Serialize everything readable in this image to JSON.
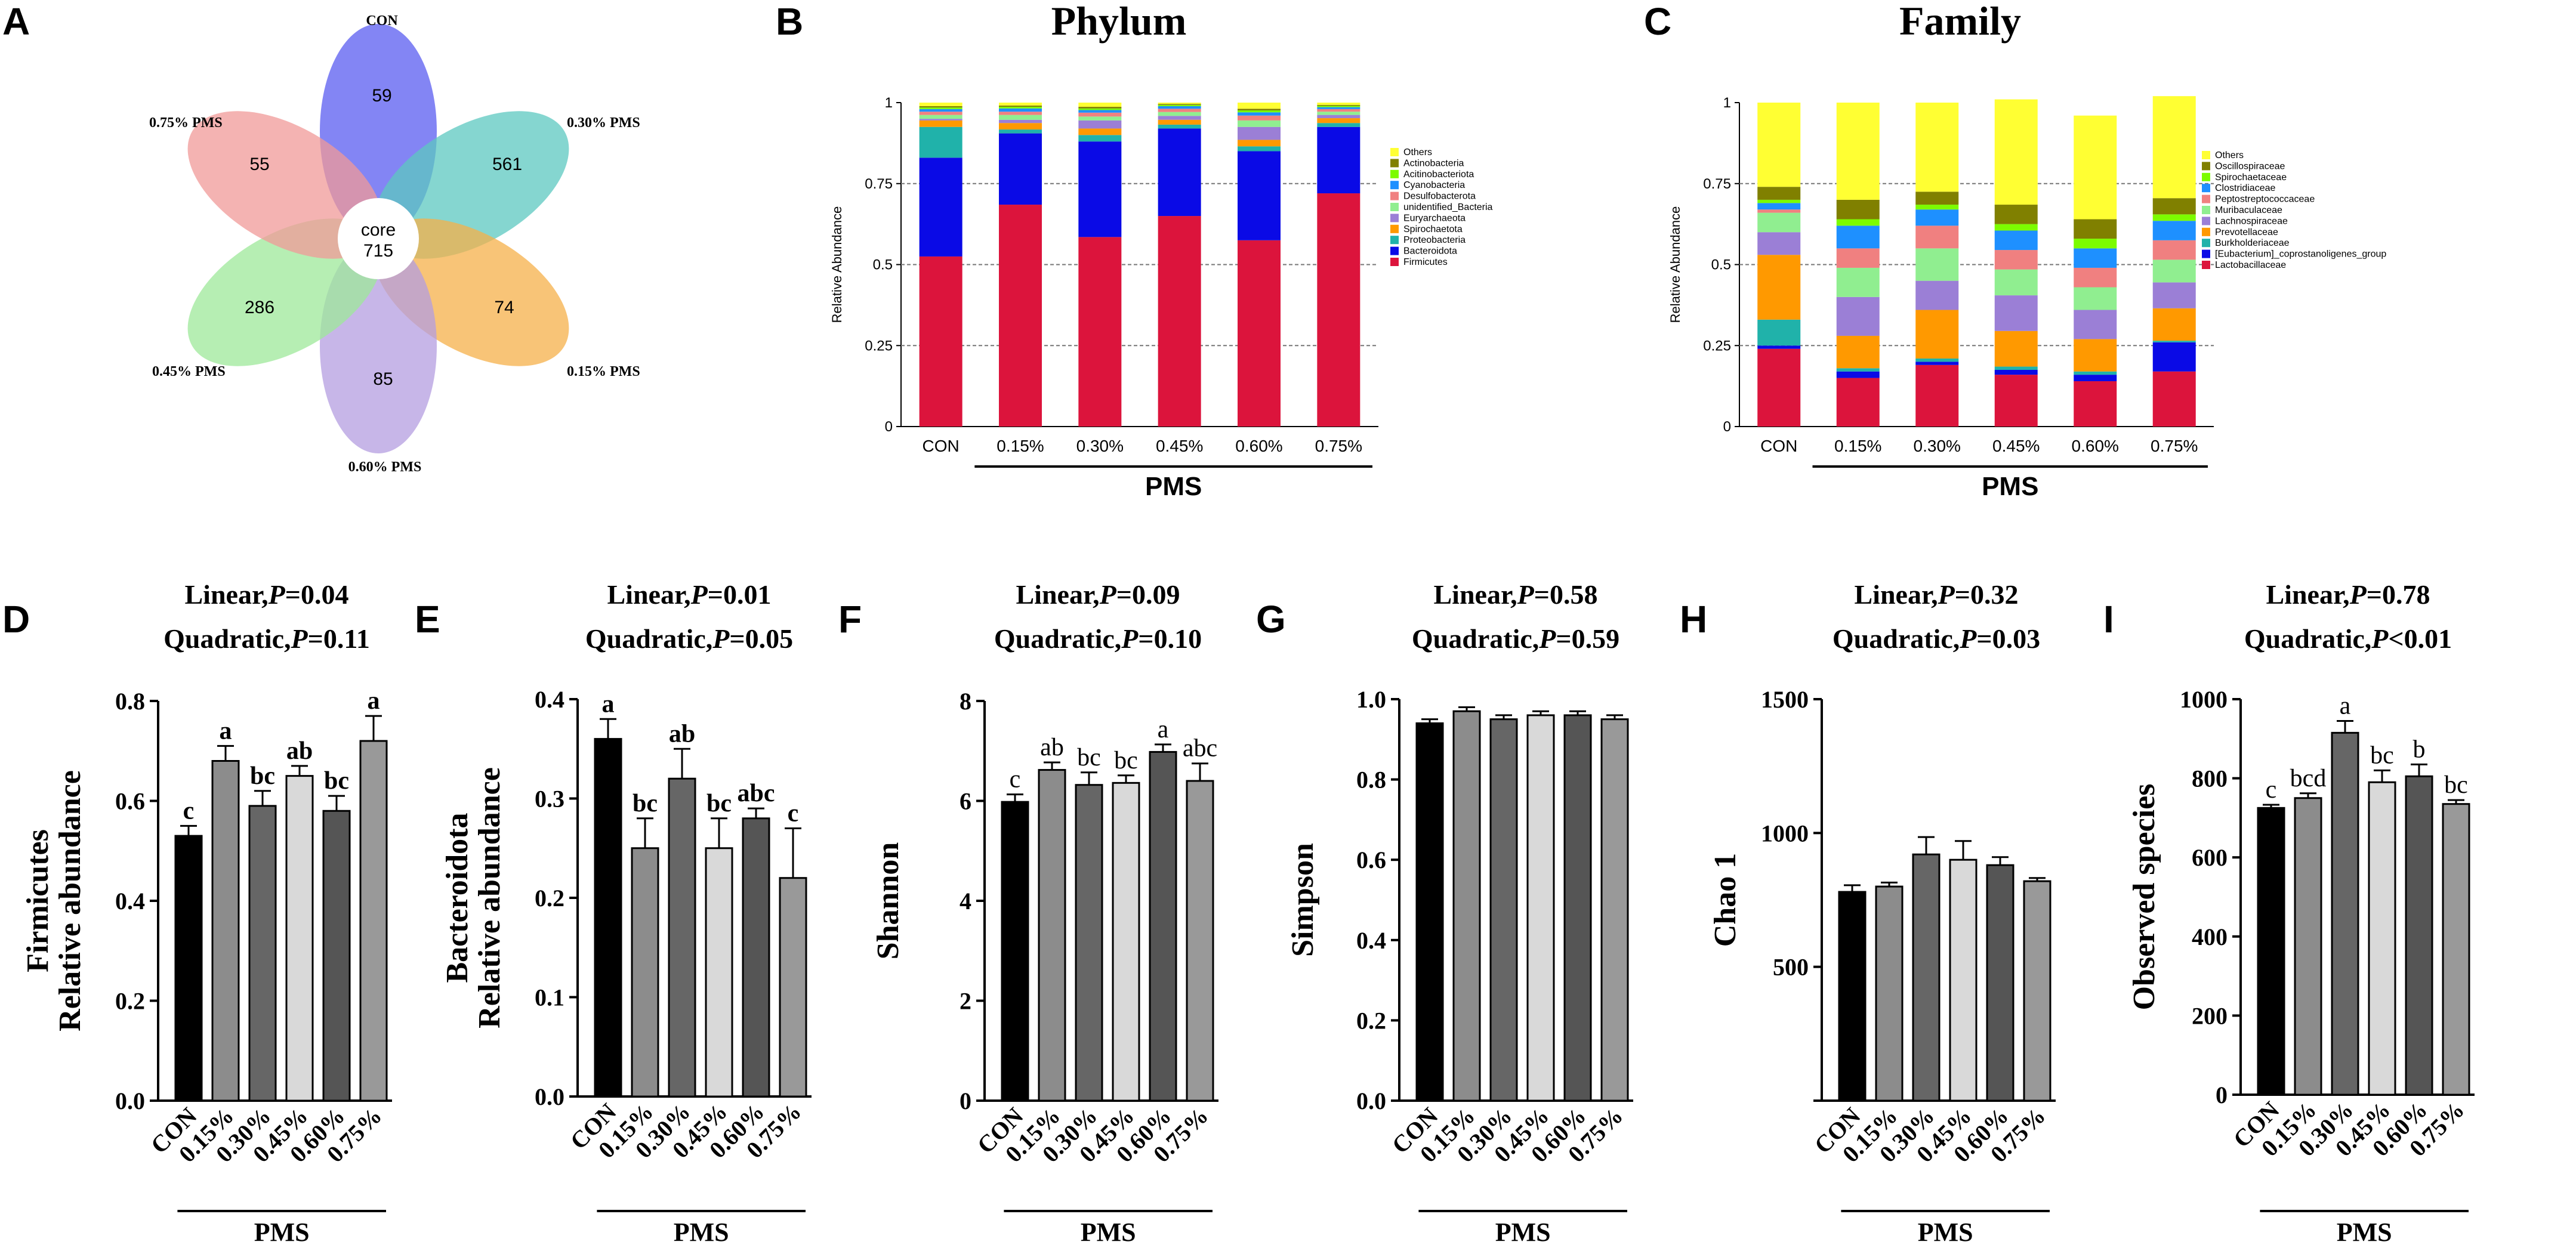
{
  "panel_labels": [
    "A",
    "B",
    "C",
    "D",
    "E",
    "F",
    "G",
    "H",
    "I"
  ],
  "venn": {
    "core_label": "core",
    "core_value": "715",
    "petals": [
      {
        "name": "CON",
        "value": "59",
        "color": "#5a5cf0"
      },
      {
        "name": "0.30% PMS",
        "value": "561",
        "color": "#5cc8c0"
      },
      {
        "name": "0.15% PMS",
        "value": "74",
        "color": "#f5b04a"
      },
      {
        "name": "0.60% PMS",
        "value": "85",
        "color": "#b49ee0"
      },
      {
        "name": "0.45% PMS",
        "value": "286",
        "color": "#9ee89a"
      },
      {
        "name": "0.75% PMS",
        "value": "55",
        "color": "#f09a98"
      }
    ]
  },
  "chart_data": [
    {
      "id": "B",
      "type": "bar",
      "stacked": true,
      "title": "Phylum",
      "ylabel": "Relative Abundance",
      "group_label": "PMS",
      "categories": [
        "CON",
        "0.15%",
        "0.30%",
        "0.45%",
        "0.60%",
        "0.75%"
      ],
      "yticks": [
        "0",
        "0.25",
        "0.5",
        "0.75",
        "1"
      ],
      "ylim": [
        0,
        1
      ],
      "legend": [
        "Others",
        "Actinobacteria",
        "Acitinobacteriota",
        "Cyanobacteria",
        "Desulfobacterota",
        "unidentified_Bacteria",
        "Euryarchaeota",
        "Spirochaetota",
        "Proteobacteria",
        "Bacteroidota",
        "Firmicutes"
      ],
      "series": [
        {
          "name": "Firmicutes",
          "color": "#dc143c",
          "values": [
            0.525,
            0.685,
            0.585,
            0.65,
            0.575,
            0.72
          ]
        },
        {
          "name": "Bacteroidota",
          "color": "#0a0ae6",
          "values": [
            0.305,
            0.22,
            0.295,
            0.27,
            0.275,
            0.205
          ]
        },
        {
          "name": "Proteobacteria",
          "color": "#20b2aa",
          "values": [
            0.095,
            0.012,
            0.02,
            0.012,
            0.015,
            0.012
          ]
        },
        {
          "name": "Spirochaetota",
          "color": "#ff9900",
          "values": [
            0.02,
            0.02,
            0.02,
            0.015,
            0.02,
            0.015
          ]
        },
        {
          "name": "Euryarchaeota",
          "color": "#9b7fd6",
          "values": [
            0.005,
            0.01,
            0.025,
            0.012,
            0.04,
            0.01
          ]
        },
        {
          "name": "unidentified_Bacteria",
          "color": "#90ee90",
          "values": [
            0.012,
            0.015,
            0.012,
            0.012,
            0.02,
            0.01
          ]
        },
        {
          "name": "Desulfobacterota",
          "color": "#f08080",
          "values": [
            0.01,
            0.01,
            0.012,
            0.01,
            0.015,
            0.008
          ]
        },
        {
          "name": "Cyanobacteria",
          "color": "#1e90ff",
          "values": [
            0.008,
            0.01,
            0.008,
            0.008,
            0.01,
            0.006
          ]
        },
        {
          "name": "Acitinobacteriota",
          "color": "#7cfc00",
          "values": [
            0.005,
            0.005,
            0.005,
            0.004,
            0.006,
            0.004
          ]
        },
        {
          "name": "Actinobacteria",
          "color": "#808000",
          "values": [
            0.004,
            0.004,
            0.005,
            0.003,
            0.005,
            0.003
          ]
        },
        {
          "name": "Others",
          "color": "#ffff33",
          "values": [
            0.011,
            0.009,
            0.013,
            0.004,
            0.019,
            0.007
          ]
        }
      ]
    },
    {
      "id": "C",
      "type": "bar",
      "stacked": true,
      "title": "Family",
      "ylabel": "Relative Abundance",
      "group_label": "PMS",
      "categories": [
        "CON",
        "0.15%",
        "0.30%",
        "0.45%",
        "0.60%",
        "0.75%"
      ],
      "yticks": [
        "0",
        "0.25",
        "0.5",
        "0.75",
        "1"
      ],
      "ylim": [
        0,
        1
      ],
      "legend": [
        "Others",
        "Oscillospiraceae",
        "Spirochaetaceae",
        "Clostridiaceae",
        "Peptostreptococcaceae",
        "Muribaculaceae",
        "Lachnospiraceae",
        "Prevotellaceae",
        "Burkholderiaceae",
        "[Eubacterium]_coprostanoligenes_group",
        "Lactobacillaceae"
      ],
      "series": [
        {
          "name": "Lactobacillaceae",
          "color": "#dc143c",
          "values": [
            0.24,
            0.15,
            0.19,
            0.16,
            0.14,
            0.17
          ]
        },
        {
          "name": "[Eubacterium]_coprostanoligenes_group",
          "color": "#0a0ae6",
          "values": [
            0.01,
            0.02,
            0.01,
            0.015,
            0.02,
            0.09
          ]
        },
        {
          "name": "Burkholderiaceae",
          "color": "#20b2aa",
          "values": [
            0.08,
            0.01,
            0.01,
            0.01,
            0.01,
            0.005
          ]
        },
        {
          "name": "Prevotellaceae",
          "color": "#ff9900",
          "values": [
            0.2,
            0.1,
            0.15,
            0.11,
            0.1,
            0.1
          ]
        },
        {
          "name": "Lachnospiraceae",
          "color": "#9b7fd6",
          "values": [
            0.07,
            0.12,
            0.09,
            0.11,
            0.09,
            0.08
          ]
        },
        {
          "name": "Muribaculaceae",
          "color": "#90ee90",
          "values": [
            0.06,
            0.09,
            0.1,
            0.08,
            0.07,
            0.07
          ]
        },
        {
          "name": "Peptostreptococcaceae",
          "color": "#f08080",
          "values": [
            0.01,
            0.06,
            0.07,
            0.06,
            0.06,
            0.06
          ]
        },
        {
          "name": "Clostridiaceae",
          "color": "#1e90ff",
          "values": [
            0.02,
            0.07,
            0.05,
            0.06,
            0.06,
            0.06
          ]
        },
        {
          "name": "Spirochaetaceae",
          "color": "#7cfc00",
          "values": [
            0.01,
            0.02,
            0.015,
            0.02,
            0.03,
            0.02
          ]
        },
        {
          "name": "Oscillospiraceae",
          "color": "#808000",
          "values": [
            0.04,
            0.06,
            0.04,
            0.06,
            0.06,
            0.05
          ]
        },
        {
          "name": "Others",
          "color": "#ffff33",
          "values": [
            0.26,
            0.3,
            0.275,
            0.325,
            0.32,
            0.315
          ]
        }
      ]
    },
    {
      "id": "D",
      "type": "bar",
      "title_lines": [
        [
          "Linear,",
          "P",
          "=0.04"
        ],
        [
          "Quadratic,",
          "P",
          "=0.11"
        ]
      ],
      "ylabel_lines": [
        "Firmicutes",
        "Relative abundance"
      ],
      "group_label": "PMS",
      "categories": [
        "CON",
        "0.15%",
        "0.30%",
        "0.45%",
        "0.60%",
        "0.75%"
      ],
      "values": [
        0.53,
        0.68,
        0.59,
        0.65,
        0.58,
        0.72
      ],
      "errors": [
        0.02,
        0.03,
        0.03,
        0.02,
        0.03,
        0.05
      ],
      "letters": [
        "c",
        "a",
        "bc",
        "ab",
        "bc",
        "a"
      ],
      "letters_bold": true,
      "ylim": [
        0,
        0.8
      ],
      "yticks": [
        "0.0",
        "0.2",
        "0.4",
        "0.6",
        "0.8"
      ]
    },
    {
      "id": "E",
      "type": "bar",
      "title_lines": [
        [
          "Linear,",
          "P",
          "=0.01"
        ],
        [
          "Quadratic,",
          "P",
          "=0.05"
        ]
      ],
      "ylabel_lines": [
        "Bacteroidota",
        "Relative abundance"
      ],
      "group_label": "PMS",
      "categories": [
        "CON",
        "0.15%",
        "0.30%",
        "0.45%",
        "0.60%",
        "0.75%"
      ],
      "values": [
        0.36,
        0.25,
        0.32,
        0.25,
        0.28,
        0.22
      ],
      "errors": [
        0.02,
        0.03,
        0.03,
        0.03,
        0.01,
        0.05
      ],
      "letters": [
        "a",
        "bc",
        "ab",
        "bc",
        "abc",
        "c"
      ],
      "letters_bold": true,
      "ylim": [
        0,
        0.4
      ],
      "yticks": [
        "0.0",
        "0.1",
        "0.2",
        "0.3",
        "0.4"
      ]
    },
    {
      "id": "F",
      "type": "bar",
      "title_lines": [
        [
          "Linear,",
          "P",
          "=0.09"
        ],
        [
          "Quadratic,",
          "P",
          "=0.10"
        ]
      ],
      "ylabel_lines": [
        "Shannon"
      ],
      "group_label": "PMS",
      "categories": [
        "CON",
        "0.15%",
        "0.30%",
        "0.45%",
        "0.60%",
        "0.75%"
      ],
      "values": [
        5.98,
        6.62,
        6.32,
        6.36,
        6.98,
        6.4
      ],
      "errors": [
        0.15,
        0.15,
        0.25,
        0.15,
        0.15,
        0.35
      ],
      "letters": [
        "c",
        "ab",
        "bc",
        "bc",
        "a",
        "abc"
      ],
      "letters_bold": false,
      "ylim": [
        0,
        8
      ],
      "yticks": [
        "0",
        "2",
        "4",
        "6",
        "8"
      ]
    },
    {
      "id": "G",
      "type": "bar",
      "title_lines": [
        [
          "Linear,",
          "P",
          "=0.58"
        ],
        [
          "Quadratic,",
          "P",
          "=0.59"
        ]
      ],
      "ylabel_lines": [
        "Simpson"
      ],
      "group_label": "PMS",
      "categories": [
        "CON",
        "0.15%",
        "0.30%",
        "0.45%",
        "0.60%",
        "0.75%"
      ],
      "values": [
        0.94,
        0.97,
        0.95,
        0.96,
        0.96,
        0.95
      ],
      "errors": [
        0.01,
        0.01,
        0.01,
        0.01,
        0.01,
        0.01
      ],
      "letters": [],
      "letters_bold": false,
      "ylim": [
        0,
        1.0
      ],
      "yticks": [
        "0.0",
        "0.2",
        "0.4",
        "0.6",
        "0.8",
        "1.0"
      ]
    },
    {
      "id": "H",
      "type": "bar",
      "title_lines": [
        [
          "Linear,",
          "P",
          "=0.32"
        ],
        [
          "Quadratic,",
          "P",
          "=0.03"
        ]
      ],
      "ylabel_lines": [
        "Chao 1"
      ],
      "group_label": "PMS",
      "categories": [
        "CON",
        "0.15%",
        "0.30%",
        "0.45%",
        "0.60%",
        "0.75%"
      ],
      "values": [
        780,
        800,
        920,
        900,
        880,
        820
      ],
      "errors": [
        25,
        15,
        65,
        70,
        30,
        12
      ],
      "letters": [],
      "letters_bold": false,
      "ylim": [
        0,
        1500
      ],
      "yticks": [
        "",
        "500",
        "1000",
        "1500"
      ]
    },
    {
      "id": "I",
      "type": "bar",
      "title_lines": [
        [
          "Linear,",
          "P",
          "=0.78"
        ],
        [
          "Quadratic,",
          "P",
          "<0.01"
        ]
      ],
      "ylabel_lines": [
        "Observed species"
      ],
      "group_label": "PMS",
      "categories": [
        "CON",
        "0.15%",
        "0.30%",
        "0.45%",
        "0.60%",
        "0.75%"
      ],
      "values": [
        725,
        750,
        915,
        790,
        805,
        735
      ],
      "errors": [
        8,
        12,
        30,
        30,
        30,
        10
      ],
      "letters": [
        "c",
        "bcd",
        "a",
        "bc",
        "b",
        "bc"
      ],
      "letters_bold": false,
      "ylim": [
        0,
        1000
      ],
      "yticks": [
        "0",
        "200",
        "400",
        "600",
        "800",
        "1000"
      ]
    }
  ],
  "bar_fill_colors": [
    "#000000",
    "#8c8c8c",
    "#666666",
    "#d9d9d9",
    "#555555",
    "#999999"
  ]
}
